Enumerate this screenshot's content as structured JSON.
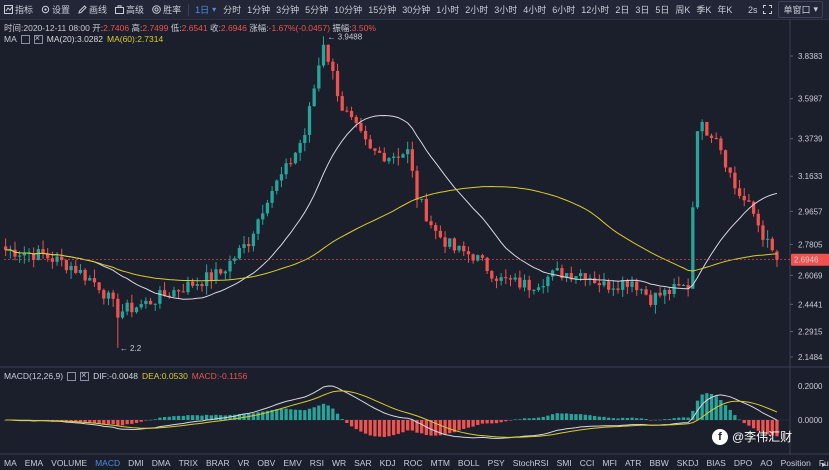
{
  "toolbar": {
    "tools": [
      {
        "icon": "indicator-icon",
        "label": "指标"
      },
      {
        "icon": "gear-icon",
        "label": "设置"
      },
      {
        "icon": "pencil-icon",
        "label": "画线"
      },
      {
        "icon": "briefcase-icon",
        "label": "高级"
      },
      {
        "icon": "target-icon",
        "label": "胜率"
      }
    ],
    "periods": [
      "1日",
      "分时",
      "1分钟",
      "3分钟",
      "5分钟",
      "10分钟",
      "15分钟",
      "30分钟",
      "1小时",
      "2小时",
      "3小时",
      "4小时",
      "6小时",
      "12小时",
      "2日",
      "3日",
      "5日",
      "周K",
      "季K",
      "年K"
    ],
    "active_period": "1日",
    "refresh_interval": "2s",
    "window_mode": "单窗口"
  },
  "ohlc": {
    "time_label": "时间:",
    "time": "2020-12-11 08:00",
    "open_label": "开:",
    "open": "2.7406",
    "high_label": "高:",
    "high": "2.7499",
    "low_label": "低:",
    "low": "2.6541",
    "close_label": "收:",
    "close": "2.6946",
    "change_label": "涨幅:",
    "change": "-1.67%(-0.0457)",
    "amplitude_label": "振幅:",
    "amplitude": "3.50%"
  },
  "ma_legend": {
    "name": "MA",
    "ma20": "MA(20):3.0282",
    "ma60": "MA(60):2.7314"
  },
  "macd_legend": {
    "name": "MACD(12,26,9)",
    "dif": "DIF:-0.0048",
    "dea": "DEA:0.0530",
    "macd": "MACD:-0.1156"
  },
  "chart_data": {
    "type": "candlestick",
    "price_axis_ticks": [
      "3.8383",
      "3.5987",
      "3.3739",
      "3.1633",
      "2.9657",
      "2.7805",
      "2.6069",
      "2.4441",
      "2.2915",
      "2.1484"
    ],
    "current_price": "2.6946",
    "high_annotation": "3.9488",
    "low_annotation": "2.2",
    "macd_axis_ticks": [
      "0.2000",
      "0.0000"
    ],
    "up_color": "#26a69a",
    "down_color": "#ef5350",
    "ma20_color": "#d7d9e0",
    "ma60_color": "#d9cc2e",
    "ma20": "3.0282",
    "ma60": "2.7314",
    "dif": "-0.0048",
    "dea": "0.0530",
    "macd": "-0.1156"
  },
  "indicators": [
    "MA",
    "EMA",
    "VOLUME",
    "MACD",
    "DMI",
    "DMA",
    "TRIX",
    "BRAR",
    "VR",
    "OBV",
    "EMV",
    "RSI",
    "WR",
    "SAR",
    "KDJ",
    "ROC",
    "MTM",
    "BOLL",
    "PSY",
    "StochRSI",
    "SMI",
    "CCI",
    "MFI",
    "ATR",
    "BBW",
    "SKDJ",
    "BIAS",
    "DPO",
    "AO",
    "Position",
    "Fundflow"
  ],
  "active_indicator": "MACD",
  "watermark": "@李伟汇财",
  "watermark_logo": "f"
}
